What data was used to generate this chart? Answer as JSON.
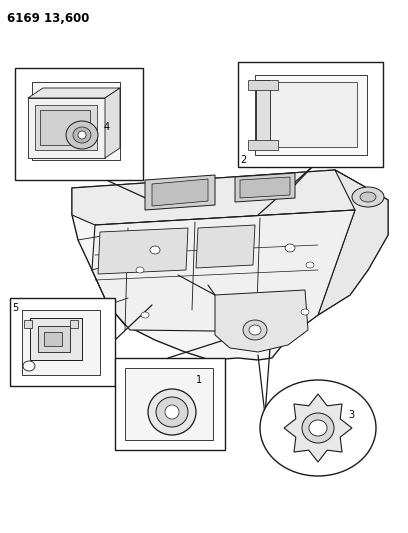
{
  "title": "6169 13,600",
  "background_color": "#ffffff",
  "line_color": "#1a1a1a",
  "fig_width": 4.08,
  "fig_height": 5.33,
  "dpi": 100
}
